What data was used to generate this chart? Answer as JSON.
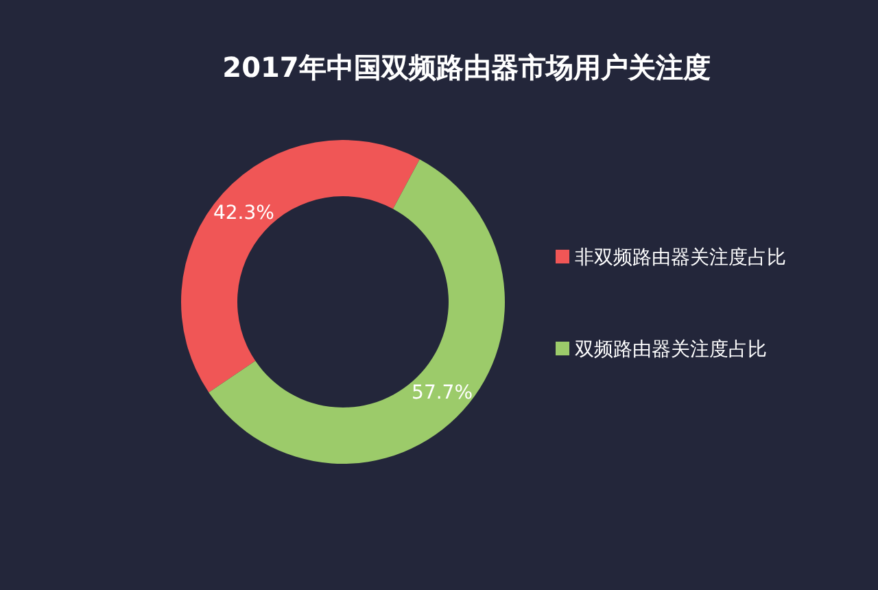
{
  "chart_data": {
    "type": "donut",
    "title": "2017年中国双频路由器市场用户关注度",
    "categories": [
      "非双频路由器关注度占比",
      "双频路由器关注度占比"
    ],
    "values": [
      42.3,
      57.7
    ],
    "colors": [
      "#f05656",
      "#9ccb6a"
    ],
    "value_labels": [
      "42.3%",
      "57.7%"
    ],
    "legend": "right"
  }
}
